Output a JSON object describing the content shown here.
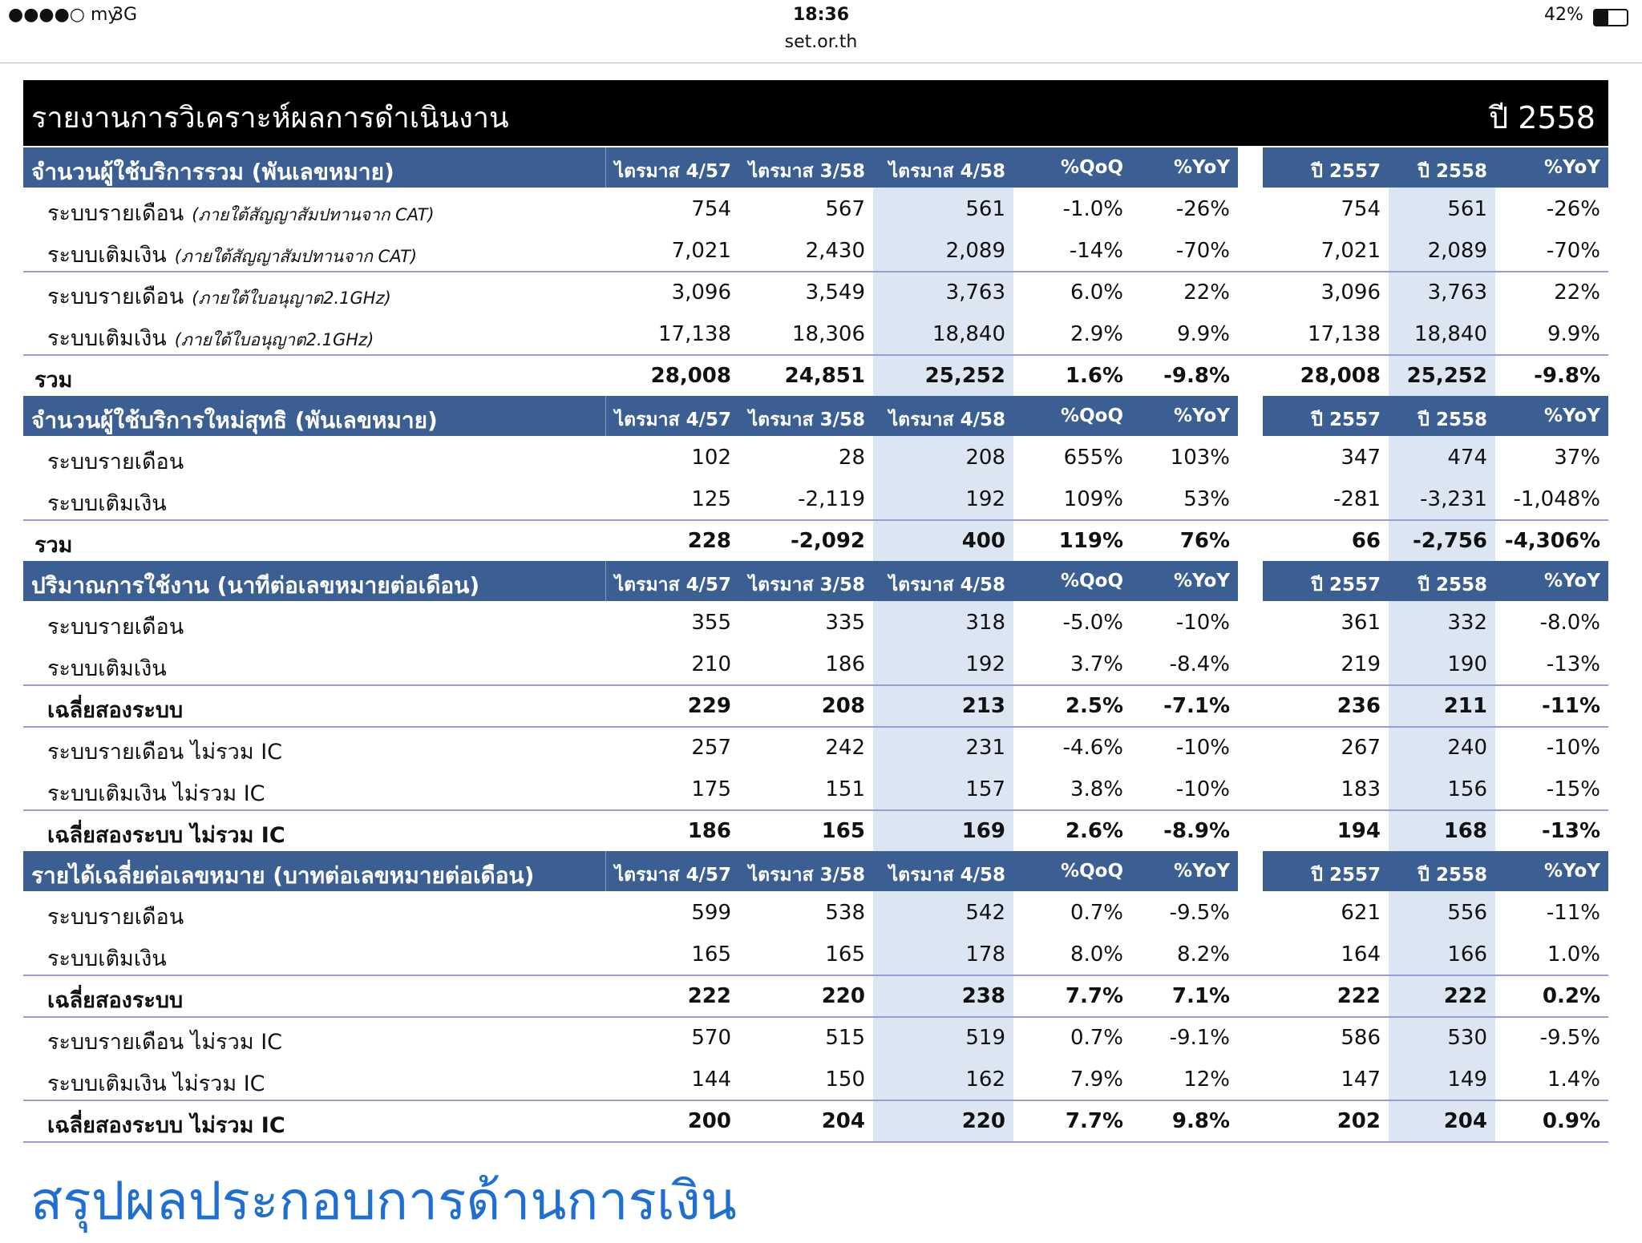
{
  "status_bar": {
    "carrier": "●●●●○ my",
    "network": "3G",
    "time": "18:36",
    "url": "set.or.th",
    "battery": "42%"
  },
  "report": {
    "title": "รายงานการวิเคราะห์ผลการดำเนินงาน",
    "year": "ปี 2558",
    "sections": [
      {
        "title": "จำนวนผู้ใช้บริการรวม (พันเลขหมาย)",
        "headers": [
          "ไตรมาส 4/57",
          "ไตรมาส 3/58",
          "ไตรมาส 4/58",
          "%QoQ",
          "%YoY",
          "ปี 2557",
          "ปี 2558",
          "%YoY"
        ],
        "rows": [
          {
            "label": "ระบบรายเดือน",
            "note": "(ภายใต้สัญญาสัมปทานจาก CAT)",
            "cells": [
              "754",
              "567",
              "561",
              "-1.0%",
              "-26%",
              "754",
              "561",
              "-26%"
            ]
          },
          {
            "label": "ระบบเติมเงิน",
            "note": "(ภายใต้สัญญาสัมปทานจาก CAT)",
            "cells": [
              "7,021",
              "2,430",
              "2,089",
              "-14%",
              "-70%",
              "7,021",
              "2,089",
              "-70%"
            ]
          },
          {
            "label": "ระบบรายเดือน",
            "note": "(ภายใต้ใบอนุญาต2.1GHz)",
            "line_above": true,
            "cells": [
              "3,096",
              "3,549",
              "3,763",
              "6.0%",
              "22%",
              "3,096",
              "3,763",
              "22%"
            ]
          },
          {
            "label": "ระบบเติมเงิน",
            "note": "(ภายใต้ใบอนุญาต2.1GHz)",
            "cells": [
              "17,138",
              "18,306",
              "18,840",
              "2.9%",
              "9.9%",
              "17,138",
              "18,840",
              "9.9%"
            ]
          },
          {
            "label": "รวม",
            "bold": true,
            "line_above": true,
            "cells": [
              "28,008",
              "24,851",
              "25,252",
              "1.6%",
              "-9.8%",
              "28,008",
              "25,252",
              "-9.8%"
            ]
          }
        ]
      },
      {
        "title": "จำนวนผู้ใช้บริการใหม่สุทธิ (พันเลขหมาย)",
        "headers": [
          "ไตรมาส 4/57",
          "ไตรมาส 3/58",
          "ไตรมาส 4/58",
          "%QoQ",
          "%YoY",
          "ปี 2557",
          "ปี 2558",
          "%YoY"
        ],
        "rows": [
          {
            "label": "ระบบรายเดือน",
            "cells": [
              "102",
              "28",
              "208",
              "655%",
              "103%",
              "347",
              "474",
              "37%"
            ]
          },
          {
            "label": "ระบบเติมเงิน",
            "cells": [
              "125",
              "-2,119",
              "192",
              "109%",
              "53%",
              "-281",
              "-3,231",
              "-1,048%"
            ]
          },
          {
            "label": "รวม",
            "bold": true,
            "line_above": true,
            "cells": [
              "228",
              "-2,092",
              "400",
              "119%",
              "76%",
              "66",
              "-2,756",
              "-4,306%"
            ]
          }
        ]
      },
      {
        "title": "ปริมาณการใช้งาน (นาทีต่อเลขหมายต่อเดือน)",
        "headers": [
          "ไตรมาส 4/57",
          "ไตรมาส 3/58",
          "ไตรมาส 4/58",
          "%QoQ",
          "%YoY",
          "ปี 2557",
          "ปี 2558",
          "%YoY"
        ],
        "rows": [
          {
            "label": "ระบบรายเดือน",
            "cells": [
              "355",
              "335",
              "318",
              "-5.0%",
              "-10%",
              "361",
              "332",
              "-8.0%"
            ]
          },
          {
            "label": "ระบบเติมเงิน",
            "cells": [
              "210",
              "186",
              "192",
              "3.7%",
              "-8.4%",
              "219",
              "190",
              "-13%"
            ]
          },
          {
            "label": "เฉลี่ยสองระบบ",
            "bold": true,
            "line_above": true,
            "cells": [
              "229",
              "208",
              "213",
              "2.5%",
              "-7.1%",
              "236",
              "211",
              "-11%"
            ]
          },
          {
            "label": "ระบบรายเดือน ไม่รวม IC",
            "line_above": true,
            "cells": [
              "257",
              "242",
              "231",
              "-4.6%",
              "-10%",
              "267",
              "240",
              "-10%"
            ]
          },
          {
            "label": "ระบบเติมเงิน ไม่รวม IC",
            "cells": [
              "175",
              "151",
              "157",
              "3.8%",
              "-10%",
              "183",
              "156",
              "-15%"
            ]
          },
          {
            "label": "เฉลี่ยสองระบบ ไม่รวม IC",
            "bold": true,
            "line_above": true,
            "cells": [
              "186",
              "165",
              "169",
              "2.6%",
              "-8.9%",
              "194",
              "168",
              "-13%"
            ]
          }
        ]
      },
      {
        "title": "รายได้เฉลี่ยต่อเลขหมาย (บาทต่อเลขหมายต่อเดือน)",
        "headers": [
          "ไตรมาส 4/57",
          "ไตรมาส 3/58",
          "ไตรมาส 4/58",
          "%QoQ",
          "%YoY",
          "ปี 2557",
          "ปี 2558",
          "%YoY"
        ],
        "rows": [
          {
            "label": "ระบบรายเดือน",
            "cells": [
              "599",
              "538",
              "542",
              "0.7%",
              "-9.5%",
              "621",
              "556",
              "-11%"
            ]
          },
          {
            "label": "ระบบเติมเงิน",
            "cells": [
              "165",
              "165",
              "178",
              "8.0%",
              "8.2%",
              "164",
              "166",
              "1.0%"
            ]
          },
          {
            "label": "เฉลี่ยสองระบบ",
            "bold": true,
            "line_above": true,
            "cells": [
              "222",
              "220",
              "238",
              "7.7%",
              "7.1%",
              "222",
              "222",
              "0.2%"
            ]
          },
          {
            "label": "ระบบรายเดือน ไม่รวม IC",
            "line_above": true,
            "cells": [
              "570",
              "515",
              "519",
              "0.7%",
              "-9.1%",
              "586",
              "530",
              "-9.5%"
            ]
          },
          {
            "label": "ระบบเติมเงิน ไม่รวม IC",
            "cells": [
              "144",
              "150",
              "162",
              "7.9%",
              "12%",
              "147",
              "149",
              "1.4%"
            ]
          },
          {
            "label": "เฉลี่ยสองระบบ ไม่รวม IC",
            "bold": true,
            "line_above": true,
            "cells": [
              "200",
              "204",
              "220",
              "7.7%",
              "9.8%",
              "202",
              "204",
              "0.9%"
            ]
          }
        ]
      }
    ]
  },
  "next_heading": "สรุปผลประกอบการด้านการเงิน"
}
